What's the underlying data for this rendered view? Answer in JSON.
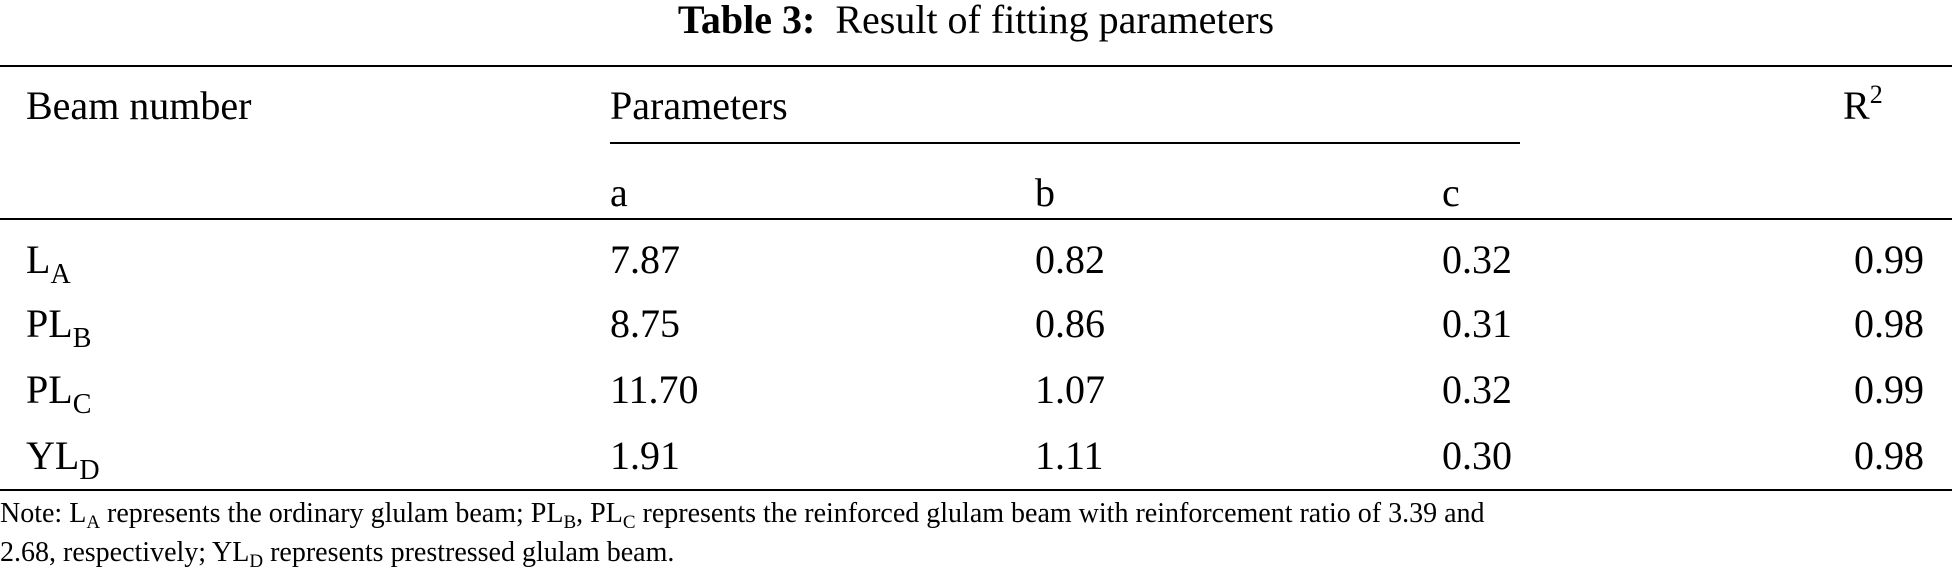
{
  "caption": {
    "label": "Table 3:",
    "title": "Result of fitting parameters"
  },
  "header": {
    "beam": "Beam number",
    "parameters": "Parameters",
    "r2_base": "R",
    "r2_sup": "2",
    "a": "a",
    "b": "b",
    "c": "c"
  },
  "rows": [
    {
      "beam_base": "L",
      "beam_sub": "A",
      "a": "7.87",
      "b": "0.82",
      "c": "0.32",
      "r2": "0.99"
    },
    {
      "beam_base": "PL",
      "beam_sub": "B",
      "a": "8.75",
      "b": "0.86",
      "c": "0.31",
      "r2": "0.98"
    },
    {
      "beam_base": "PL",
      "beam_sub": "C",
      "a": "11.70",
      "b": "1.07",
      "c": "0.32",
      "r2": "0.99"
    },
    {
      "beam_base": "YL",
      "beam_sub": "D",
      "a": "1.91",
      "b": "1.11",
      "c": "0.30",
      "r2": "0.98"
    }
  ],
  "note": {
    "t1": "Note: L",
    "s1": "A",
    "t2": " represents the ordinary glulam beam; PL",
    "s2": "B",
    "t3": ", PL",
    "s3": "C",
    "t4": " represents the reinforced glulam beam with reinforcement ratio of 3.39 and",
    "t5": "2.68, respectively; YL",
    "s5": "D",
    "t6": " represents prestressed glulam beam."
  }
}
